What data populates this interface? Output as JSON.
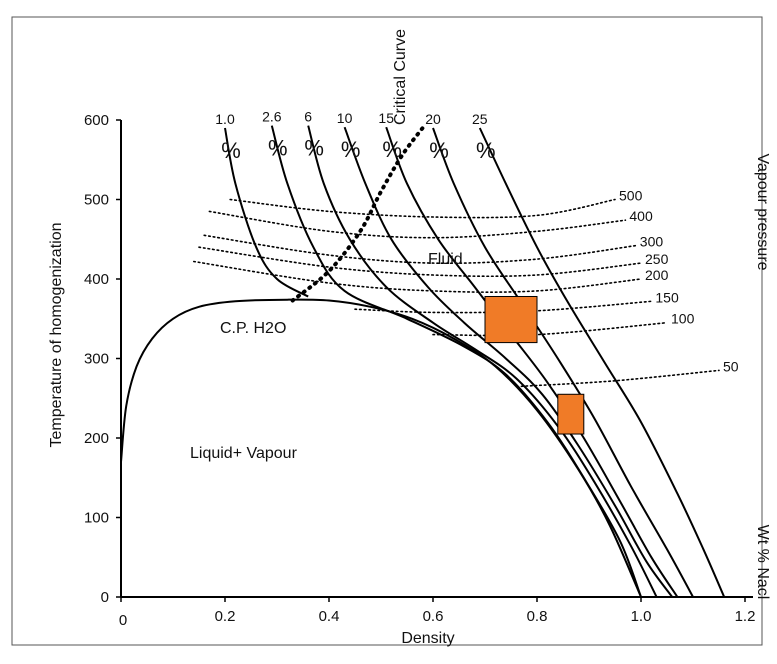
{
  "chart_data": {
    "type": "line",
    "title": "",
    "xlabel": "Density",
    "ylabel": "Temperature of homogenization",
    "right_label_top": "Vapour pressure",
    "right_label_bottom": "Wt % Nacl",
    "xlim": [
      0,
      1.2
    ],
    "ylim": [
      0,
      600
    ],
    "x_ticks": [
      {
        "value": 0,
        "label": "0"
      },
      {
        "value": 0.2,
        "label": "0.2"
      },
      {
        "value": 0.4,
        "label": "0.4"
      },
      {
        "value": 0.6,
        "label": "0.6"
      },
      {
        "value": 0.8,
        "label": "0.8"
      },
      {
        "value": 1.0,
        "label": "1.0"
      },
      {
        "value": 1.2,
        "label": "1.2"
      }
    ],
    "y_ticks": [
      {
        "value": 0,
        "label": "0"
      },
      {
        "value": 100,
        "label": "100"
      },
      {
        "value": 200,
        "label": "200"
      },
      {
        "value": 300,
        "label": "300"
      },
      {
        "value": 400,
        "label": "400"
      },
      {
        "value": 500,
        "label": "500"
      },
      {
        "value": 600,
        "label": "600"
      }
    ],
    "annotations": {
      "liquid_vapour": "Liquid+ Vapour",
      "cp_h2o": "C.P. H2O",
      "fluid": "Fluid",
      "critical_curve": "Critical Curve"
    },
    "boundary_curve": [
      [
        0,
        170
      ],
      [
        0.01,
        240
      ],
      [
        0.03,
        290
      ],
      [
        0.06,
        325
      ],
      [
        0.1,
        350
      ],
      [
        0.15,
        365
      ],
      [
        0.22,
        372
      ],
      [
        0.32,
        374
      ],
      [
        0.4,
        373
      ],
      [
        0.48,
        365
      ],
      [
        0.56,
        350
      ],
      [
        0.64,
        325
      ],
      [
        0.72,
        290
      ],
      [
        0.8,
        235
      ],
      [
        0.88,
        160
      ],
      [
        0.94,
        90
      ],
      [
        1.0,
        0
      ]
    ],
    "critical_curve": [
      [
        0.33,
        373
      ],
      [
        0.4,
        410
      ],
      [
        0.46,
        460
      ],
      [
        0.5,
        510
      ],
      [
        0.54,
        555
      ],
      [
        0.58,
        590
      ]
    ],
    "isopleths": [
      {
        "label": "1.0",
        "pct": "%",
        "points": [
          [
            0.2,
            590
          ],
          [
            0.22,
            520
          ],
          [
            0.26,
            440
          ],
          [
            0.3,
            400
          ],
          [
            0.36,
            378
          ]
        ]
      },
      {
        "label": "2.6",
        "pct": "%",
        "points": [
          [
            0.29,
            593
          ],
          [
            0.32,
            520
          ],
          [
            0.37,
            440
          ],
          [
            0.43,
            385
          ],
          [
            0.55,
            350
          ],
          [
            0.66,
            315
          ],
          [
            0.74,
            280
          ],
          [
            0.82,
            220
          ],
          [
            0.89,
            150
          ],
          [
            0.96,
            70
          ],
          [
            1.0,
            0
          ]
        ]
      },
      {
        "label": "6",
        "pct": "%",
        "points": [
          [
            0.36,
            593
          ],
          [
            0.39,
            520
          ],
          [
            0.44,
            450
          ],
          [
            0.51,
            390
          ],
          [
            0.6,
            345
          ],
          [
            0.68,
            312
          ],
          [
            0.76,
            275
          ],
          [
            0.84,
            215
          ],
          [
            0.91,
            145
          ],
          [
            0.98,
            65
          ],
          [
            1.03,
            0
          ]
        ]
      },
      {
        "label": "10",
        "pct": "%",
        "points": [
          [
            0.43,
            591
          ],
          [
            0.47,
            520
          ],
          [
            0.52,
            450
          ],
          [
            0.59,
            390
          ],
          [
            0.66,
            345
          ],
          [
            0.74,
            300
          ],
          [
            0.81,
            255
          ],
          [
            0.88,
            190
          ],
          [
            0.95,
            115
          ],
          [
            1.01,
            45
          ],
          [
            1.06,
            0
          ]
        ]
      },
      {
        "label": "15",
        "pct": "%",
        "points": [
          [
            0.51,
            591
          ],
          [
            0.55,
            520
          ],
          [
            0.61,
            450
          ],
          [
            0.68,
            390
          ],
          [
            0.75,
            330
          ],
          [
            0.82,
            270
          ],
          [
            0.89,
            200
          ],
          [
            0.96,
            120
          ],
          [
            1.02,
            50
          ],
          [
            1.07,
            0
          ]
        ]
      },
      {
        "label": "20",
        "pct": "%",
        "points": [
          [
            0.6,
            590
          ],
          [
            0.64,
            520
          ],
          [
            0.7,
            440
          ],
          [
            0.77,
            370
          ],
          [
            0.84,
            300
          ],
          [
            0.91,
            225
          ],
          [
            0.98,
            140
          ],
          [
            1.05,
            60
          ],
          [
            1.1,
            0
          ]
        ]
      },
      {
        "label": "25",
        "pct": "%",
        "points": [
          [
            0.69,
            590
          ],
          [
            0.74,
            520
          ],
          [
            0.8,
            440
          ],
          [
            0.86,
            370
          ],
          [
            0.93,
            295
          ],
          [
            1.0,
            220
          ],
          [
            1.07,
            130
          ],
          [
            1.12,
            60
          ],
          [
            1.16,
            0
          ]
        ]
      }
    ],
    "isobars": [
      {
        "label": "500",
        "points": [
          [
            0.21,
            500
          ],
          [
            0.4,
            485
          ],
          [
            0.6,
            478
          ],
          [
            0.8,
            480
          ],
          [
            0.95,
            500
          ]
        ]
      },
      {
        "label": "400",
        "points": [
          [
            0.17,
            485
          ],
          [
            0.4,
            460
          ],
          [
            0.6,
            452
          ],
          [
            0.8,
            460
          ],
          [
            0.97,
            474
          ]
        ]
      },
      {
        "label": "300",
        "points": [
          [
            0.16,
            455
          ],
          [
            0.4,
            430
          ],
          [
            0.6,
            420
          ],
          [
            0.8,
            425
          ],
          [
            0.99,
            442
          ]
        ]
      },
      {
        "label": "250",
        "points": [
          [
            0.15,
            440
          ],
          [
            0.4,
            415
          ],
          [
            0.6,
            405
          ],
          [
            0.8,
            405
          ],
          [
            1.0,
            420
          ]
        ]
      },
      {
        "label": "200",
        "points": [
          [
            0.14,
            422
          ],
          [
            0.4,
            395
          ],
          [
            0.6,
            385
          ],
          [
            0.8,
            385
          ],
          [
            1.0,
            400
          ]
        ]
      },
      {
        "label": "150",
        "points": [
          [
            0.45,
            362
          ],
          [
            0.6,
            358
          ],
          [
            0.8,
            360
          ],
          [
            1.02,
            372
          ]
        ]
      },
      {
        "label": "100",
        "points": [
          [
            0.6,
            330
          ],
          [
            0.8,
            330
          ],
          [
            1.05,
            345
          ]
        ]
      },
      {
        "label": "50",
        "points": [
          [
            0.77,
            265
          ],
          [
            0.95,
            272
          ],
          [
            1.15,
            285
          ]
        ]
      }
    ],
    "highlight_boxes": [
      {
        "x": [
          0.7,
          0.8
        ],
        "y": [
          320,
          378
        ],
        "color": "#f07b27"
      },
      {
        "x": [
          0.84,
          0.89
        ],
        "y": [
          205,
          255
        ],
        "color": "#f07b27"
      }
    ],
    "grid": false,
    "colors": {
      "ink": "#000000",
      "box": "#f07b27",
      "frame": "#555555"
    }
  }
}
